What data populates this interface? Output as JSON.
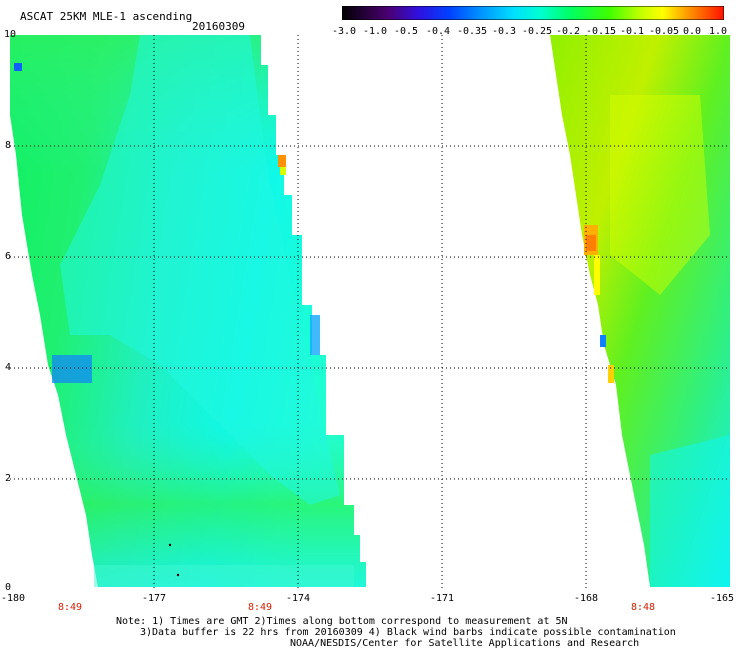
{
  "header": {
    "title": "ASCAT 25KM MLE-1 ascending",
    "date": "20160309"
  },
  "colorbar": {
    "ticks": [
      "-3.0",
      "-1.0",
      "-0.5",
      "-0.4",
      "-0.35",
      "-0.3",
      "-0.25",
      "-0.2",
      "-0.15",
      "-0.1",
      "-0.05",
      "0.0",
      "1.0"
    ],
    "colors": [
      "#000000",
      "#5a0090",
      "#0010ff",
      "#0090ff",
      "#00ffff",
      "#00ff80",
      "#20ff00",
      "#c0ff00",
      "#ffff00",
      "#ff8000",
      "#ff1000"
    ]
  },
  "map": {
    "lat_labels": [
      "10",
      "8",
      "6",
      "4",
      "2",
      "0"
    ],
    "lon_labels": [
      "-180",
      "-177",
      "-174",
      "-171",
      "-168",
      "-165"
    ],
    "time_labels": [
      "8:49",
      "8:49",
      "8:48"
    ],
    "lat_range": [
      0,
      10
    ],
    "lon_range": [
      -180,
      -165
    ],
    "gridlines": "dotted",
    "swaths": [
      {
        "time": "8:49",
        "dominant": "cyan-green",
        "values_range": [
          -0.4,
          -0.15
        ]
      },
      {
        "time": "8:48",
        "dominant": "green-yellow",
        "values_range": [
          -0.35,
          -0.05
        ]
      }
    ]
  },
  "notes": {
    "line1": "Note: 1) Times are GMT 2)Times along bottom correspond to measurement at 5N",
    "line2": "3)Data buffer is 22 hrs from 20160309 4) Black wind barbs indicate possible contamination",
    "line3": "NOAA/NESDIS/Center for Satellite Applications and Research"
  }
}
